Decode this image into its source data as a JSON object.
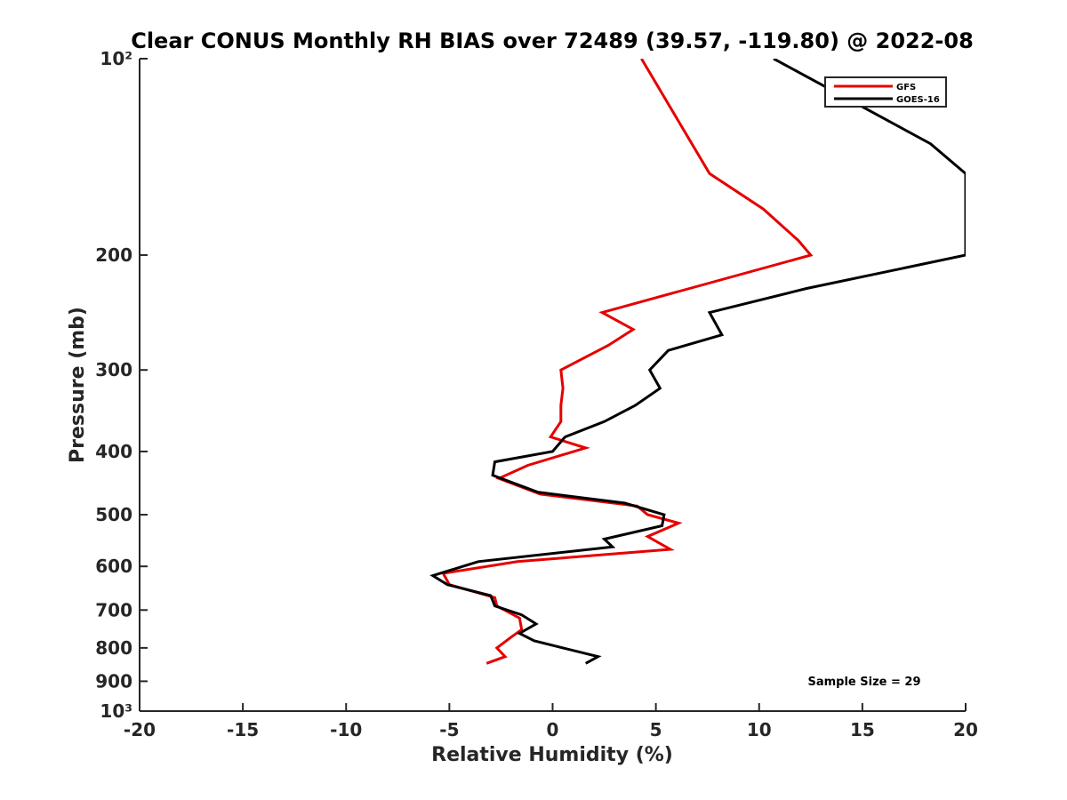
{
  "chart_data": {
    "type": "line",
    "title": "Clear CONUS Monthly RH BIAS over 72489 (39.57, -119.80) @ 2022-08",
    "xlabel": "Relative Humidity (%)",
    "ylabel": "Pressure (mb)",
    "xlim": [
      -20,
      20
    ],
    "ylim": [
      100,
      1000
    ],
    "yscale": "log",
    "y_reversed": true,
    "xticks": [
      -20,
      -15,
      -10,
      -5,
      0,
      5,
      10,
      15,
      20
    ],
    "xtick_labels": [
      "-20",
      "-15",
      "-10",
      "-5",
      "0",
      "5",
      "10",
      "15",
      "20"
    ],
    "yticks": [
      100,
      200,
      300,
      400,
      500,
      600,
      700,
      800,
      900,
      1000
    ],
    "ytick_labels": [
      "10²",
      "200",
      "300",
      "400",
      "500",
      "600",
      "700",
      "800",
      "900",
      "10³"
    ],
    "legend_position": "top-right",
    "annotation": "Sample Size = 29",
    "series": [
      {
        "name": "GFS",
        "color": "#e60000",
        "x": [
          4.3,
          7.6,
          10.2,
          11.9,
          12.5,
          2.4,
          3.9,
          2.7,
          0.4,
          0.5,
          0.4,
          0.4,
          -0.1,
          1.6,
          -1.2,
          -2.6,
          -0.6,
          4.1,
          4.6,
          6.1,
          4.6,
          5.7,
          -1.7,
          -5.3,
          -5.0,
          -2.8,
          -2.7,
          -1.6,
          -1.5,
          -2.0,
          -2.7,
          -2.3,
          -3.2
        ],
        "y": [
          100,
          150,
          170,
          190,
          200,
          245,
          260,
          275,
          300,
          320,
          340,
          360,
          380,
          395,
          420,
          440,
          465,
          485,
          500,
          515,
          540,
          565,
          590,
          615,
          640,
          670,
          690,
          720,
          750,
          770,
          800,
          825,
          845
        ]
      },
      {
        "name": "GOES-16",
        "color": "#000000",
        "x": [
          10.7,
          13.8,
          18.3,
          20.0,
          20.0,
          12.3,
          7.6,
          8.2,
          5.6,
          4.7,
          5.2,
          4.0,
          2.5,
          0.6,
          0.0,
          -2.8,
          -2.9,
          -0.7,
          3.5,
          5.4,
          5.3,
          2.5,
          2.9,
          -3.6,
          -5.8,
          -5.1,
          -3.0,
          -2.8,
          -1.5,
          -0.8,
          -1.6,
          -0.9,
          0.5,
          2.2,
          1.6
        ],
        "y": [
          100,
          113,
          135,
          150,
          200,
          225,
          245,
          265,
          280,
          300,
          320,
          340,
          360,
          380,
          400,
          415,
          435,
          462,
          480,
          500,
          520,
          545,
          560,
          590,
          620,
          640,
          665,
          690,
          712,
          735,
          760,
          780,
          800,
          825,
          845
        ]
      }
    ]
  }
}
